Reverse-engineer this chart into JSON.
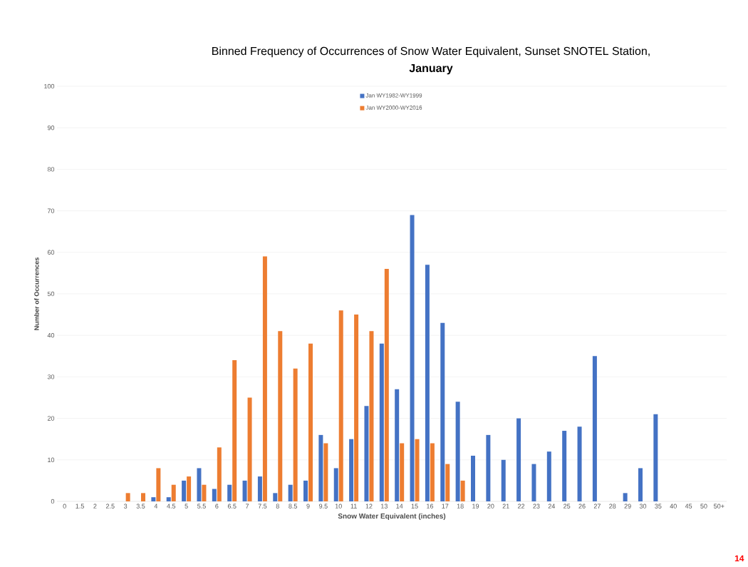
{
  "chart_data": {
    "type": "bar",
    "title": "Binned Frequency of Occurrences of Snow Water Equivalent, Sunset SNOTEL Station,",
    "subtitle": "January",
    "xlabel": "Snow Water Equivalent  (inches)",
    "ylabel": "Number of Occurrences",
    "categories": [
      "0",
      "1.5",
      "2",
      "2.5",
      "3",
      "3.5",
      "4",
      "4.5",
      "5",
      "5.5",
      "6",
      "6.5",
      "7",
      "7.5",
      "8",
      "8.5",
      "9",
      "9.5",
      "10",
      "11",
      "12",
      "13",
      "14",
      "15",
      "16",
      "17",
      "18",
      "19",
      "20",
      "21",
      "22",
      "23",
      "24",
      "25",
      "26",
      "27",
      "28",
      "29",
      "30",
      "35",
      "40",
      "45",
      "50",
      "50+"
    ],
    "series": [
      {
        "name": "Jan WY1982-WY1999",
        "color": "#4472c4",
        "values": [
          0,
          0,
          0,
          0,
          0,
          0,
          1,
          1,
          5,
          8,
          3,
          4,
          5,
          6,
          2,
          4,
          5,
          16,
          8,
          15,
          23,
          38,
          27,
          69,
          57,
          43,
          24,
          11,
          16,
          10,
          20,
          9,
          12,
          17,
          18,
          35,
          0,
          2,
          8,
          21,
          0,
          0,
          0,
          0
        ]
      },
      {
        "name": "Jan WY2000-WY2016",
        "color": "#ed7d31",
        "values": [
          0,
          0,
          0,
          0,
          2,
          2,
          8,
          4,
          6,
          4,
          13,
          34,
          25,
          59,
          41,
          32,
          38,
          14,
          46,
          45,
          41,
          56,
          14,
          15,
          14,
          9,
          5,
          0,
          0,
          0,
          0,
          0,
          0,
          0,
          0,
          0,
          0,
          0,
          0,
          0,
          0,
          0,
          0,
          0
        ]
      }
    ],
    "ylim": [
      0,
      100
    ],
    "yticks": [
      0,
      10,
      20,
      30,
      40,
      50,
      60,
      70,
      80,
      90,
      100
    ],
    "grid": "y",
    "legend": "top",
    "annotations": [
      "14"
    ]
  }
}
